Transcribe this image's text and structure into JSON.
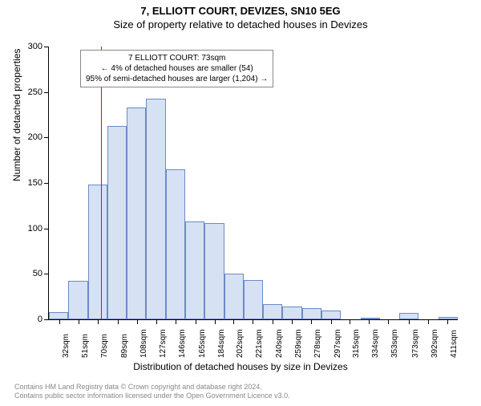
{
  "title_line1": "7, ELLIOTT COURT, DEVIZES, SN10 5EG",
  "title_line2": "Size of property relative to detached houses in Devizes",
  "y_axis_title": "Number of detached properties",
  "x_axis_title": "Distribution of detached houses by size in Devizes",
  "info_box": {
    "line1": "7 ELLIOTT COURT: 73sqm",
    "line2": "← 4% of detached houses are smaller (54)",
    "line3": "95% of semi-detached houses are larger (1,204) →"
  },
  "chart": {
    "type": "histogram",
    "bar_fill": "#d6e1f4",
    "bar_border": "#6b8bc5",
    "marker_color": "#ff0000",
    "marker_x_value": 73,
    "background_color": "#ffffff",
    "ylim": [
      0,
      300
    ],
    "y_ticks": [
      0,
      50,
      100,
      150,
      200,
      250,
      300
    ],
    "x_ticks": [
      32,
      51,
      70,
      89,
      108,
      127,
      146,
      165,
      184,
      202,
      221,
      240,
      259,
      278,
      297,
      315,
      334,
      353,
      373,
      392,
      411
    ],
    "x_tick_suffix": "sqm",
    "x_range": [
      22,
      421
    ],
    "bin_edges": [
      22,
      41,
      60,
      79,
      98,
      117,
      136,
      155,
      174,
      193,
      212,
      231,
      250,
      269,
      288,
      307,
      326,
      345,
      364,
      383,
      402,
      421
    ],
    "values": [
      8,
      42,
      148,
      213,
      233,
      243,
      165,
      108,
      106,
      50,
      43,
      17,
      14,
      12,
      10,
      0,
      2,
      0,
      7,
      0,
      3
    ],
    "label_fontsize": 11,
    "tick_fontsize": 10,
    "title_fontsize": 13
  },
  "footer": {
    "line1": "Contains HM Land Registry data © Crown copyright and database right 2024.",
    "line2": "Contains public sector information licensed under the Open Government Licence v3.0."
  }
}
